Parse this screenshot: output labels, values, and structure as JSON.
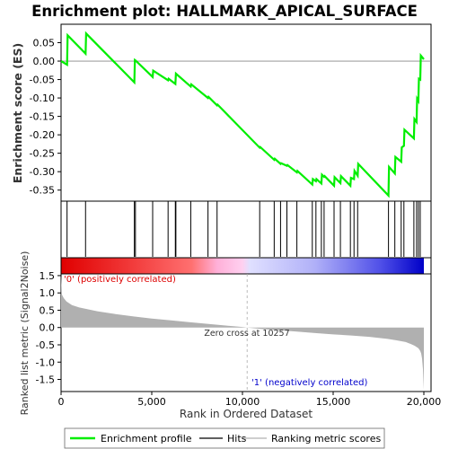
{
  "chart_data": {
    "type": "line",
    "title": "Enrichment plot: HALLMARK_APICAL_SURFACE",
    "top_panel": {
      "ylabel": "Enrichment score (ES)",
      "ylim": [
        -0.38,
        0.1
      ],
      "yticks": [
        0.05,
        0.0,
        -0.05,
        -0.1,
        -0.15,
        -0.2,
        -0.25,
        -0.3,
        -0.35
      ],
      "ytick_labels": [
        "0.05",
        "0.00",
        "-0.05",
        "-0.10",
        "-0.15",
        "-0.20",
        "-0.25",
        "-0.30",
        "-0.35"
      ],
      "line_color": "#00ee00",
      "series": [
        {
          "name": "Enrichment profile",
          "x": [
            0,
            330,
            360,
            1350,
            1380,
            4040,
            4070,
            4100,
            5050,
            5080,
            5900,
            5930,
            6300,
            6330,
            7150,
            7180,
            8100,
            8130,
            8600,
            8630,
            10950,
            10980,
            11750,
            11780,
            12100,
            12130,
            12450,
            12480,
            13000,
            13030,
            13850,
            13880,
            14050,
            14080,
            14350,
            14380,
            14500,
            14530,
            15050,
            15080,
            15400,
            15430,
            15950,
            15980,
            16150,
            16180,
            16350,
            16380,
            18050,
            18080,
            18400,
            18430,
            18750,
            18780,
            18900,
            18930,
            19450,
            19480,
            19600,
            19630,
            19700,
            19730,
            19800,
            19830,
            20000
          ],
          "y": [
            0.0,
            -0.01,
            0.07,
            0.02,
            0.075,
            -0.058,
            0.003,
            0.002,
            -0.043,
            -0.026,
            -0.052,
            -0.048,
            -0.062,
            -0.034,
            -0.069,
            -0.063,
            -0.1,
            -0.097,
            -0.12,
            -0.118,
            -0.235,
            -0.233,
            -0.268,
            -0.265,
            -0.279,
            -0.277,
            -0.284,
            -0.282,
            -0.302,
            -0.298,
            -0.335,
            -0.32,
            -0.326,
            -0.32,
            -0.332,
            -0.308,
            -0.314,
            -0.312,
            -0.338,
            -0.315,
            -0.331,
            -0.312,
            -0.338,
            -0.317,
            -0.32,
            -0.298,
            -0.311,
            -0.279,
            -0.365,
            -0.287,
            -0.305,
            -0.26,
            -0.273,
            -0.234,
            -0.23,
            -0.186,
            -0.21,
            -0.157,
            -0.165,
            -0.102,
            -0.108,
            -0.048,
            -0.05,
            0.015,
            0.005
          ]
        }
      ]
    },
    "hits": [
      330,
      1350,
      4040,
      4100,
      5050,
      5900,
      6300,
      6330,
      7150,
      8100,
      8600,
      10950,
      11750,
      12100,
      12450,
      13000,
      13850,
      14050,
      14350,
      14500,
      15050,
      15400,
      15950,
      16150,
      16350,
      18050,
      18400,
      18750,
      18900,
      19450,
      19600,
      19700,
      19800
    ],
    "bottom_panel": {
      "ylabel": "Ranked list metric (Signal2Noise)",
      "xlabel": "Rank in Ordered Dataset",
      "xlim": [
        0,
        20000
      ],
      "ylim": [
        -1.85,
        1.55
      ],
      "xticks": [
        0,
        5000,
        10000,
        15000,
        20000
      ],
      "xtick_labels": [
        "0",
        "5,000",
        "10,000",
        "15,000",
        "20,000"
      ],
      "yticks": [
        1.5,
        1.0,
        0.5,
        0.0,
        -0.5,
        -1.0,
        -1.5
      ],
      "ytick_labels": [
        "1.5",
        "1.0",
        "0.5",
        "0.0",
        "-0.5",
        "-1.0",
        "-1.5"
      ],
      "metric_x": [
        0,
        50,
        150,
        300,
        600,
        1000,
        2000,
        3000,
        4000,
        5000,
        6000,
        7000,
        8000,
        9000,
        10000,
        10257,
        11000,
        12000,
        13000,
        14000,
        15000,
        16000,
        17000,
        17500,
        18000,
        18500,
        19000,
        19300,
        19500,
        19700,
        19800,
        19850,
        19900,
        19950,
        20000
      ],
      "metric_y": [
        1.5,
        0.95,
        0.85,
        0.75,
        0.65,
        0.58,
        0.47,
        0.39,
        0.32,
        0.26,
        0.21,
        0.16,
        0.11,
        0.06,
        0.015,
        0.0,
        -0.04,
        -0.08,
        -0.12,
        -0.16,
        -0.2,
        -0.23,
        -0.27,
        -0.3,
        -0.33,
        -0.37,
        -0.42,
        -0.48,
        -0.53,
        -0.6,
        -0.68,
        -0.75,
        -0.9,
        -1.2,
        -1.8
      ],
      "zero_cross_label": "Zero cross at 10257",
      "zero_cross_x": 10257,
      "positive_label": "'0' (positively correlated)",
      "negative_label": "'1' (negatively correlated)"
    },
    "legend": {
      "placement": "bottom",
      "entries": [
        "Enrichment profile",
        "Hits",
        "Ranking metric scores"
      ]
    },
    "colors": {
      "positive": "#ee0000",
      "negative": "#0000ee",
      "metric_fill": "#b0b0b0",
      "positive_label": "#dd0000",
      "negative_label": "#0000cc"
    }
  }
}
